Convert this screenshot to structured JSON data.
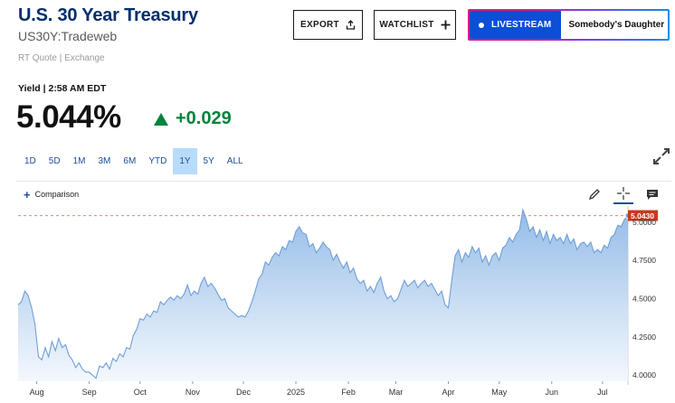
{
  "header": {
    "title": "U.S. 30 Year Treasury",
    "symbol": "US30Y:Tradeweb",
    "quote_source": "RT Quote | Exchange"
  },
  "actions": {
    "export_label": "EXPORT",
    "watchlist_label": "WATCHLIST"
  },
  "livestream": {
    "badge_label": "LIVESTREAM",
    "show_name": "Somebody's Daughter"
  },
  "quote": {
    "label": "Yield | 2:58 AM EDT",
    "price": "5.044%",
    "change": "+0.029",
    "change_color": "#00843d"
  },
  "ranges": [
    {
      "label": "1D"
    },
    {
      "label": "5D"
    },
    {
      "label": "1M"
    },
    {
      "label": "3M"
    },
    {
      "label": "6M"
    },
    {
      "label": "YTD"
    },
    {
      "label": "1Y",
      "active": true
    },
    {
      "label": "5Y"
    },
    {
      "label": "ALL"
    }
  ],
  "chart_toolbar": {
    "comparison_label": "Comparison"
  },
  "chart_data": {
    "type": "area",
    "series_color": "#6f9fd8",
    "fill_top": "#8fb8e6",
    "fill_bottom": "#f2f7fd",
    "current_value": 5.043,
    "current_label": "5.0430",
    "current_label_color": "#c8381f",
    "y_ticks": [
      4.0,
      4.25,
      4.5,
      4.75,
      5.0
    ],
    "y_tick_labels": [
      "4.0000",
      "4.2500",
      "4.5000",
      "4.7500",
      "5.0000"
    ],
    "ylim": [
      3.96,
      5.07
    ],
    "x_ticks": [
      "Aug",
      "Sep",
      "Oct",
      "Nov",
      "Dec",
      "2025",
      "Feb",
      "Mar",
      "Apr",
      "May",
      "Jun",
      "Jul"
    ],
    "x_tick_days": [
      11,
      42,
      72,
      103,
      133,
      164,
      195,
      223,
      254,
      284,
      315,
      345
    ],
    "x_range_days": [
      0,
      360
    ],
    "values_by_day": [
      [
        0,
        4.46
      ],
      [
        2,
        4.48
      ],
      [
        4,
        4.55
      ],
      [
        6,
        4.52
      ],
      [
        8,
        4.44
      ],
      [
        10,
        4.33
      ],
      [
        12,
        4.12
      ],
      [
        14,
        4.1
      ],
      [
        16,
        4.18
      ],
      [
        18,
        4.12
      ],
      [
        20,
        4.22
      ],
      [
        22,
        4.16
      ],
      [
        24,
        4.24
      ],
      [
        26,
        4.18
      ],
      [
        28,
        4.2
      ],
      [
        30,
        4.13
      ],
      [
        32,
        4.1
      ],
      [
        34,
        4.05
      ],
      [
        36,
        4.08
      ],
      [
        38,
        4.04
      ],
      [
        40,
        4.02
      ],
      [
        42,
        4.02
      ],
      [
        44,
        4.0
      ],
      [
        46,
        3.98
      ],
      [
        48,
        4.06
      ],
      [
        50,
        4.05
      ],
      [
        52,
        4.08
      ],
      [
        54,
        4.04
      ],
      [
        56,
        4.11
      ],
      [
        58,
        4.09
      ],
      [
        60,
        4.14
      ],
      [
        62,
        4.12
      ],
      [
        64,
        4.18
      ],
      [
        66,
        4.17
      ],
      [
        68,
        4.26
      ],
      [
        70,
        4.3
      ],
      [
        72,
        4.37
      ],
      [
        74,
        4.36
      ],
      [
        76,
        4.4
      ],
      [
        78,
        4.38
      ],
      [
        80,
        4.42
      ],
      [
        82,
        4.41
      ],
      [
        84,
        4.48
      ],
      [
        86,
        4.46
      ],
      [
        88,
        4.49
      ],
      [
        90,
        4.51
      ],
      [
        92,
        4.49
      ],
      [
        94,
        4.52
      ],
      [
        96,
        4.5
      ],
      [
        98,
        4.53
      ],
      [
        100,
        4.59
      ],
      [
        102,
        4.52
      ],
      [
        104,
        4.55
      ],
      [
        106,
        4.53
      ],
      [
        108,
        4.6
      ],
      [
        110,
        4.64
      ],
      [
        112,
        4.58
      ],
      [
        114,
        4.6
      ],
      [
        116,
        4.57
      ],
      [
        118,
        4.53
      ],
      [
        120,
        4.49
      ],
      [
        122,
        4.5
      ],
      [
        124,
        4.44
      ],
      [
        126,
        4.42
      ],
      [
        128,
        4.4
      ],
      [
        130,
        4.38
      ],
      [
        132,
        4.39
      ],
      [
        134,
        4.38
      ],
      [
        136,
        4.42
      ],
      [
        138,
        4.48
      ],
      [
        140,
        4.55
      ],
      [
        142,
        4.63
      ],
      [
        144,
        4.66
      ],
      [
        146,
        4.74
      ],
      [
        148,
        4.72
      ],
      [
        150,
        4.77
      ],
      [
        152,
        4.8
      ],
      [
        154,
        4.78
      ],
      [
        156,
        4.84
      ],
      [
        158,
        4.82
      ],
      [
        160,
        4.88
      ],
      [
        162,
        4.87
      ],
      [
        164,
        4.94
      ],
      [
        166,
        4.97
      ],
      [
        168,
        4.93
      ],
      [
        170,
        4.92
      ],
      [
        172,
        4.84
      ],
      [
        174,
        4.86
      ],
      [
        176,
        4.8
      ],
      [
        178,
        4.83
      ],
      [
        180,
        4.87
      ],
      [
        182,
        4.84
      ],
      [
        184,
        4.82
      ],
      [
        186,
        4.75
      ],
      [
        188,
        4.79
      ],
      [
        190,
        4.74
      ],
      [
        192,
        4.7
      ],
      [
        194,
        4.74
      ],
      [
        196,
        4.67
      ],
      [
        198,
        4.7
      ],
      [
        200,
        4.63
      ],
      [
        202,
        4.6
      ],
      [
        204,
        4.62
      ],
      [
        206,
        4.55
      ],
      [
        208,
        4.58
      ],
      [
        210,
        4.54
      ],
      [
        212,
        4.6
      ],
      [
        214,
        4.64
      ],
      [
        216,
        4.55
      ],
      [
        218,
        4.5
      ],
      [
        220,
        4.52
      ],
      [
        222,
        4.48
      ],
      [
        224,
        4.5
      ],
      [
        226,
        4.56
      ],
      [
        228,
        4.62
      ],
      [
        230,
        4.58
      ],
      [
        232,
        4.6
      ],
      [
        234,
        4.62
      ],
      [
        236,
        4.57
      ],
      [
        238,
        4.6
      ],
      [
        240,
        4.62
      ],
      [
        242,
        4.58
      ],
      [
        244,
        4.6
      ],
      [
        246,
        4.56
      ],
      [
        248,
        4.52
      ],
      [
        250,
        4.55
      ],
      [
        252,
        4.46
      ],
      [
        254,
        4.44
      ],
      [
        256,
        4.62
      ],
      [
        258,
        4.78
      ],
      [
        260,
        4.82
      ],
      [
        262,
        4.74
      ],
      [
        264,
        4.8
      ],
      [
        266,
        4.77
      ],
      [
        268,
        4.84
      ],
      [
        270,
        4.8
      ],
      [
        272,
        4.83
      ],
      [
        274,
        4.74
      ],
      [
        276,
        4.78
      ],
      [
        278,
        4.72
      ],
      [
        280,
        4.78
      ],
      [
        282,
        4.8
      ],
      [
        284,
        4.75
      ],
      [
        286,
        4.83
      ],
      [
        288,
        4.85
      ],
      [
        290,
        4.9
      ],
      [
        292,
        4.87
      ],
      [
        294,
        4.92
      ],
      [
        296,
        4.95
      ],
      [
        298,
        5.08
      ],
      [
        300,
        5.02
      ],
      [
        302,
        4.94
      ],
      [
        304,
        4.97
      ],
      [
        306,
        4.9
      ],
      [
        308,
        4.95
      ],
      [
        310,
        4.88
      ],
      [
        312,
        4.94
      ],
      [
        314,
        4.86
      ],
      [
        316,
        4.92
      ],
      [
        318,
        4.88
      ],
      [
        320,
        4.9
      ],
      [
        322,
        4.86
      ],
      [
        324,
        4.92
      ],
      [
        326,
        4.86
      ],
      [
        328,
        4.89
      ],
      [
        330,
        4.82
      ],
      [
        332,
        4.86
      ],
      [
        334,
        4.87
      ],
      [
        336,
        4.84
      ],
      [
        338,
        4.87
      ],
      [
        340,
        4.8
      ],
      [
        342,
        4.82
      ],
      [
        344,
        4.8
      ],
      [
        346,
        4.85
      ],
      [
        348,
        4.83
      ],
      [
        350,
        4.9
      ],
      [
        352,
        4.92
      ],
      [
        354,
        4.98
      ],
      [
        356,
        4.97
      ],
      [
        358,
        5.02
      ],
      [
        360,
        5.043
      ]
    ]
  }
}
